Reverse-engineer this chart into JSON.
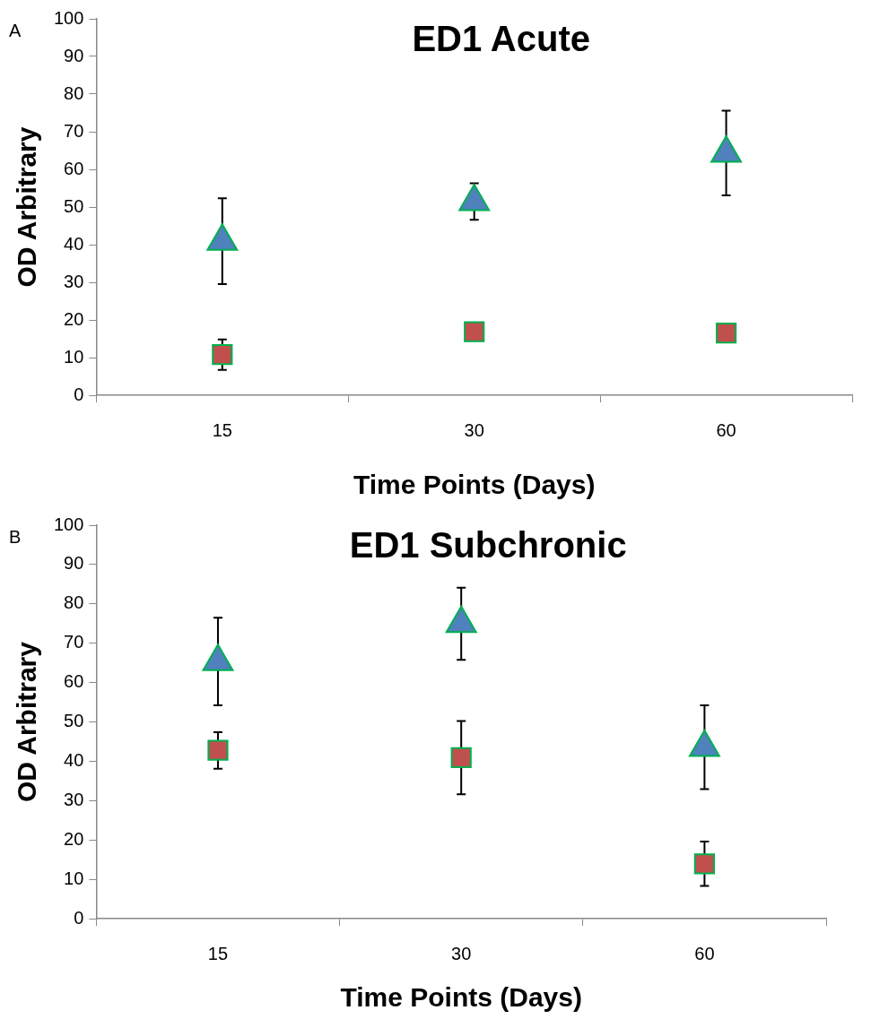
{
  "chart_data": [
    {
      "type": "scatter",
      "title": "ED1 Acute",
      "xlabel": "Time Points (Days)",
      "ylabel": "OD Arbitrary",
      "annotations": [
        "A"
      ],
      "categories": [
        "15",
        "30",
        "60"
      ],
      "ylim": [
        0,
        100
      ],
      "yticks": [
        0,
        10,
        20,
        30,
        40,
        50,
        60,
        70,
        80,
        90,
        100
      ],
      "grid": false,
      "legend": false,
      "series": [
        {
          "color": "#4f81bd",
          "marker": "triangle",
          "values": [
            40.9,
            51.4,
            64.3
          ],
          "errors": [
            [
              29.5,
              52.3
            ],
            [
              46.6,
              56.3
            ],
            [
              53.1,
              75.6
            ]
          ]
        },
        {
          "color": "#c0504d",
          "marker": "square",
          "values": [
            10.8,
            16.9,
            16.5
          ],
          "errors": [
            [
              6.7,
              14.8
            ],
            null,
            null
          ]
        }
      ]
    },
    {
      "type": "scatter",
      "title": "ED1 Subchronic",
      "xlabel": "Time Points (Days)",
      "ylabel": "OD Arbitrary",
      "annotations": [
        "B"
      ],
      "categories": [
        "15",
        "30",
        "60"
      ],
      "ylim": [
        0,
        100
      ],
      "yticks": [
        0,
        10,
        20,
        30,
        40,
        50,
        60,
        70,
        80,
        90,
        100
      ],
      "grid": false,
      "legend": false,
      "series": [
        {
          "color": "#4f81bd",
          "marker": "triangle",
          "values": [
            65.3,
            75.0,
            43.5
          ],
          "errors": [
            [
              54.2,
              76.5
            ],
            [
              65.8,
              84.1
            ],
            [
              32.9,
              54.2
            ]
          ]
        },
        {
          "color": "#c0504d",
          "marker": "square",
          "values": [
            42.8,
            40.9,
            13.9
          ],
          "errors": [
            [
              38.1,
              47.4
            ],
            [
              31.6,
              50.2
            ],
            [
              8.3,
              19.6
            ]
          ]
        }
      ]
    }
  ]
}
